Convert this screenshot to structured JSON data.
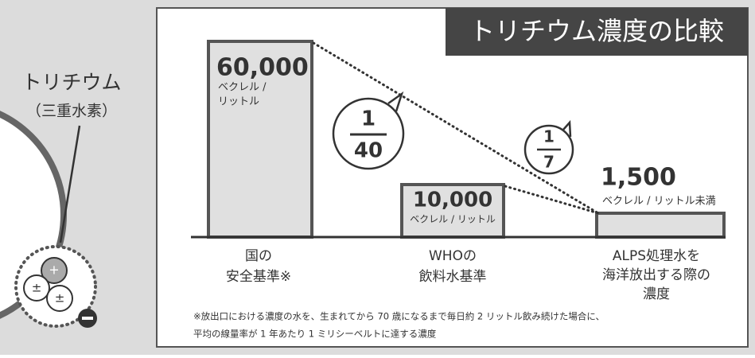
{
  "title": "トリチウム濃度の比較",
  "tritium": {
    "label": "トリチウム",
    "sub": "（三重水素）",
    "plus": "+",
    "plusminus": "±"
  },
  "items": [
    {
      "value": "60,000",
      "unit": [
        "ベクレル /",
        "リットル"
      ],
      "label": [
        "国の",
        "安全基準※"
      ]
    },
    {
      "value": "10,000",
      "unit": [
        "ベクレル / リットル"
      ],
      "label": [
        "WHOの",
        "飲料水基準"
      ]
    },
    {
      "value": "1,500",
      "unit": [
        "ベクレル / リットル未満"
      ],
      "label": [
        "ALPS処理水を",
        "海洋放出する際の",
        "濃度"
      ]
    }
  ],
  "ratios": [
    {
      "num": "1",
      "den": "40"
    },
    {
      "num": "1",
      "den": "7"
    }
  ],
  "footnote": [
    "※放出口における濃度の水を、生まれてから 70 歳になるまで毎日約 2 リットル飲み続けた場合に、",
    "平均の線量率が 1 年あたり 1 ミリシーベルトに達する濃度"
  ]
}
